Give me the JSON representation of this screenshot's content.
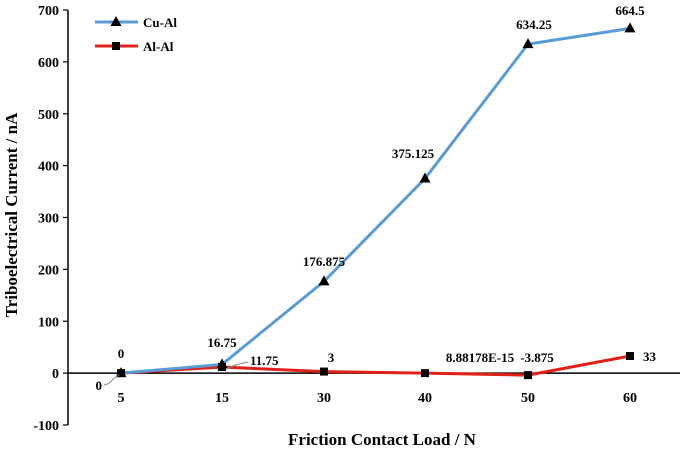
{
  "chart_data": {
    "type": "line",
    "title": "",
    "xlabel": "Friction Contact Load / N",
    "ylabel": "Triboelectrical Current / nA",
    "categories": [
      "5",
      "15",
      "30",
      "40",
      "50",
      "60"
    ],
    "ylim": [
      -100,
      700
    ],
    "yticks": [
      -100,
      0,
      100,
      200,
      300,
      400,
      500,
      600,
      700
    ],
    "grid": false,
    "legend": "top-left",
    "series": [
      {
        "name": "Cu-Al",
        "color": "#5b9bd5",
        "marker": "triangle",
        "values": [
          0,
          16.75,
          176.875,
          375.125,
          634.25,
          664.5
        ],
        "labels": [
          "0",
          "16.75",
          "176.875",
          "375.125",
          "634.25",
          "664.5"
        ]
      },
      {
        "name": "Al-Al",
        "color": "#e0201b",
        "marker": "square",
        "values": [
          0,
          11.75,
          3,
          0,
          -3.875,
          33
        ],
        "labels": [
          "0",
          "11.75",
          "3",
          "8.88178E-15",
          "-3.875",
          "33"
        ]
      }
    ]
  }
}
